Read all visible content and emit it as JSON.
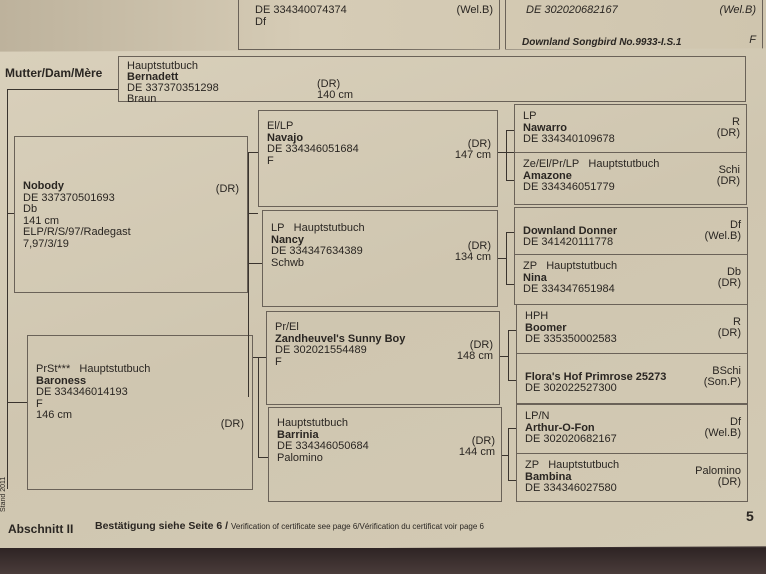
{
  "previous_page": {
    "left_id": "DE 334340074374",
    "left_breed": "(Wel.B)",
    "left_color": "Df",
    "right_id": "DE 302020682167",
    "right_breed": "(Wel.B)",
    "right_name": "Downland Songbird No.9933-I.S.1",
    "right_color": "F"
  },
  "dam_label": "Mutter/Dam/Mère",
  "dam": {
    "book": "Hauptstutbuch",
    "name": "Bernadett",
    "id": "DE 337370351298",
    "color": "Braun",
    "breed": "(DR)",
    "height": "140 cm"
  },
  "gen1": [
    {
      "name": "Nobody",
      "id": "DE 337370501693",
      "color": "Db",
      "height": "141 cm",
      "extra": [
        "ELP/R/S/97/Radegast",
        "7,97/3/19"
      ],
      "breed": "(DR)"
    },
    {
      "prefix": "PrSt***",
      "book": "Hauptstutbuch",
      "name": "Baroness",
      "id": "DE 334346014193",
      "color": "F",
      "height": "146 cm",
      "breed": "(DR)"
    }
  ],
  "gen2": [
    {
      "prefix": "El/LP",
      "name": "Navajo",
      "id": "DE 334346051684",
      "color": "F",
      "breed": "(DR)",
      "height": "147 cm"
    },
    {
      "prefix": "LP",
      "book": "Hauptstutbuch",
      "name": "Nancy",
      "id": "DE 334347634389",
      "color": "Schwb",
      "breed": "(DR)",
      "height": "134 cm"
    },
    {
      "prefix": "Pr/El",
      "name": "Zandheuvel's Sunny Boy",
      "id": "DE 302021554489",
      "color": "F",
      "breed": "(DR)",
      "height": "148 cm"
    },
    {
      "book": "Hauptstutbuch",
      "name": "Barrinia",
      "id": "DE 334346050684",
      "color": "Palomino",
      "breed": "(DR)",
      "height": "144 cm"
    }
  ],
  "gen3": [
    {
      "prefix": "LP",
      "name": "Nawarro",
      "id": "DE 334340109678",
      "color": "R",
      "breed": "(DR)"
    },
    {
      "prefix": "Ze/El/Pr/LP",
      "book": "Hauptstutbuch",
      "name": "Amazone",
      "id": "DE 334346051779",
      "color": "Schi",
      "breed": "(DR)"
    },
    {
      "name": "Downland Donner",
      "id": "DE 341420111778",
      "color": "Df",
      "breed": "(Wel.B)"
    },
    {
      "prefix": "ZP",
      "book": "Hauptstutbuch",
      "name": "Nina",
      "id": "DE 334347651984",
      "color": "Db",
      "breed": "(DR)"
    },
    {
      "prefix": "HPH",
      "name": "Boomer",
      "id": "DE 335350002583",
      "color": "R",
      "breed": "(DR)"
    },
    {
      "name": "Flora's Hof Primrose 25273",
      "id": "DE 302022527300",
      "color": "BSchi",
      "breed": "(Son.P)"
    },
    {
      "prefix": "LP/N",
      "name": "Arthur-O-Fon",
      "id": "DE 302020682167",
      "color": "Df",
      "breed": "(Wel.B)"
    },
    {
      "prefix": "ZP",
      "book": "Hauptstutbuch",
      "name": "Bambina",
      "id": "DE 334346027580",
      "color": "Palomino",
      "breed": "(DR)"
    }
  ],
  "footer": {
    "section": "Abschnitt II",
    "confirmation": "Bestätigung siehe Seite 6 /",
    "confirmation_small": "Verification of certificate see page 6/Vérification du certificat voir page 6",
    "page_number": "5",
    "stand": "Stand 2011"
  }
}
